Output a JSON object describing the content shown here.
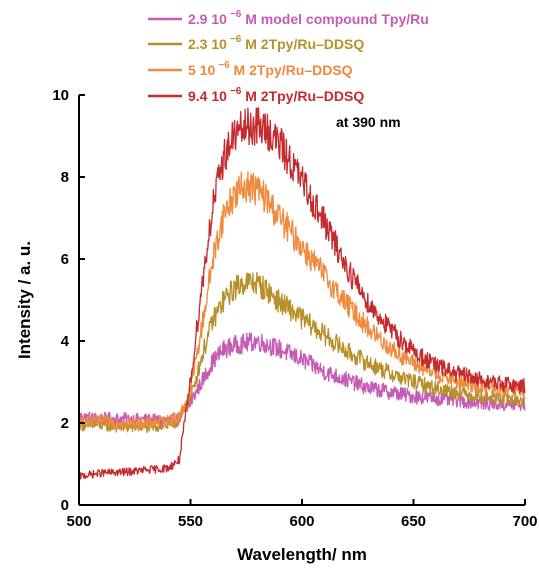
{
  "chart_data": {
    "type": "line",
    "xlabel": "Wavelength/ nm",
    "ylabel": "Intensity / a. u.",
    "xlim": [
      500,
      700
    ],
    "ylim": [
      0,
      10
    ],
    "xticks": [
      "500",
      "550",
      "600",
      "650",
      "700"
    ],
    "yticks": [
      "0",
      "2",
      "4",
      "6",
      "8",
      "10"
    ],
    "grid": false,
    "legend_position": "top",
    "annotation": "at 390 nm",
    "series": [
      {
        "name_pre": "2.9 10",
        "name_exp": "−6",
        "name_post": " M model compound Tpy/Ru",
        "color": "#c55bb5",
        "x": [
          500,
          510,
          520,
          530,
          540,
          545,
          550,
          555,
          560,
          565,
          570,
          575,
          580,
          585,
          590,
          600,
          610,
          620,
          630,
          640,
          650,
          660,
          670,
          680,
          690,
          700
        ],
        "y": [
          2.15,
          2.1,
          2.1,
          2.08,
          2.05,
          2.1,
          2.5,
          3.0,
          3.5,
          3.8,
          3.9,
          3.95,
          4.0,
          3.9,
          3.8,
          3.55,
          3.25,
          3.05,
          2.85,
          2.75,
          2.65,
          2.6,
          2.55,
          2.5,
          2.45,
          2.45
        ]
      },
      {
        "name_pre": "2.3 10",
        "name_exp": "−6",
        "name_post": " M 2Tpy/Ru–DDSQ",
        "color": "#b8902a",
        "x": [
          500,
          510,
          520,
          530,
          540,
          545,
          550,
          555,
          560,
          565,
          570,
          575,
          580,
          585,
          590,
          600,
          610,
          620,
          630,
          640,
          650,
          660,
          670,
          680,
          690,
          700
        ],
        "y": [
          1.95,
          1.95,
          1.9,
          1.9,
          1.95,
          2.05,
          2.6,
          3.6,
          4.5,
          5.0,
          5.3,
          5.45,
          5.4,
          5.2,
          4.95,
          4.55,
          4.15,
          3.75,
          3.45,
          3.2,
          3.0,
          2.85,
          2.75,
          2.65,
          2.6,
          2.55
        ]
      },
      {
        "name_pre": "5 10",
        "name_exp": "−6",
        "name_post": " M 2Tpy/Ru–DDSQ",
        "color": "#f08a3c",
        "x": [
          500,
          510,
          520,
          530,
          540,
          545,
          550,
          555,
          560,
          565,
          570,
          575,
          580,
          585,
          590,
          600,
          610,
          620,
          630,
          640,
          650,
          660,
          670,
          680,
          690,
          700
        ],
        "y": [
          2.05,
          2.05,
          2.0,
          2.0,
          2.05,
          2.15,
          2.8,
          4.3,
          6.0,
          7.1,
          7.6,
          7.8,
          7.7,
          7.4,
          7.0,
          6.3,
          5.6,
          4.9,
          4.3,
          3.8,
          3.45,
          3.2,
          3.0,
          2.9,
          2.8,
          2.75
        ]
      },
      {
        "name_pre": "9.4 10",
        "name_exp": "−6",
        "name_post": " M 2Tpy/Ru–DDSQ",
        "color": "#c42a2e",
        "x": [
          500,
          510,
          520,
          530,
          540,
          545,
          550,
          555,
          560,
          565,
          570,
          575,
          580,
          585,
          590,
          600,
          610,
          620,
          630,
          640,
          650,
          660,
          670,
          680,
          690,
          700
        ],
        "y": [
          0.7,
          0.78,
          0.8,
          0.85,
          0.9,
          1.1,
          3.0,
          5.3,
          7.3,
          8.5,
          9.05,
          9.2,
          9.25,
          9.1,
          8.8,
          7.9,
          6.9,
          5.8,
          4.9,
          4.25,
          3.75,
          3.4,
          3.2,
          3.05,
          2.95,
          2.9
        ]
      }
    ]
  }
}
